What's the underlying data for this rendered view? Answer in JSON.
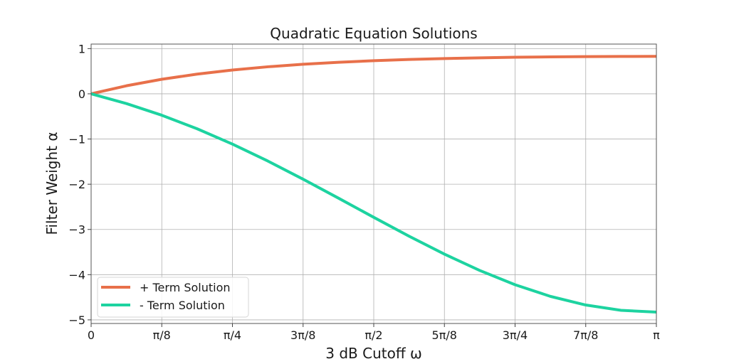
{
  "chart_data": {
    "type": "line",
    "title": "Quadratic Equation Solutions",
    "xlabel": "3 dB Cutoff ω",
    "ylabel": "Filter Weight α",
    "xlim": [
      0,
      3.14159
    ],
    "ylim": [
      -5.08,
      1.1
    ],
    "grid": true,
    "legend_position": "lower left",
    "x_ticks": [
      {
        "value": 0,
        "label": "0"
      },
      {
        "value": 0.392699,
        "label": "π/8"
      },
      {
        "value": 0.785398,
        "label": "π/4"
      },
      {
        "value": 1.178097,
        "label": "3π/8"
      },
      {
        "value": 1.570796,
        "label": "π/2"
      },
      {
        "value": 1.963495,
        "label": "5π/8"
      },
      {
        "value": 2.356194,
        "label": "3π/4"
      },
      {
        "value": 2.748894,
        "label": "7π/8"
      },
      {
        "value": 3.141593,
        "label": "π"
      }
    ],
    "y_ticks": [
      {
        "value": 1,
        "label": "1"
      },
      {
        "value": 0,
        "label": "0"
      },
      {
        "value": -1,
        "label": "−1"
      },
      {
        "value": -2,
        "label": "−2"
      },
      {
        "value": -3,
        "label": "−3"
      },
      {
        "value": -4,
        "label": "−4"
      },
      {
        "value": -5,
        "label": "−5"
      }
    ],
    "x": [
      0,
      0.19635,
      0.3927,
      0.58905,
      0.7854,
      0.98175,
      1.1781,
      1.37445,
      1.5708,
      1.76715,
      1.9635,
      2.15984,
      2.35619,
      2.55254,
      2.74889,
      2.94524,
      3.14159
    ],
    "series": [
      {
        "name": "+ Term Solution",
        "color": "#e8704a",
        "values": [
          0,
          0.1777,
          0.3214,
          0.436,
          0.5266,
          0.5979,
          0.6538,
          0.6977,
          0.7321,
          0.759,
          0.78,
          0.7962,
          0.8085,
          0.8175,
          0.8237,
          0.8272,
          0.8284
        ]
      },
      {
        "name": "- Term Solution",
        "color": "#1dd3a0",
        "values": [
          0,
          -0.2162,
          -0.4737,
          -0.7731,
          -1.1124,
          -1.4867,
          -1.8884,
          -2.3075,
          -2.7321,
          -3.1492,
          -3.5454,
          -3.9074,
          -4.2227,
          -4.4805,
          -4.6714,
          -4.7888,
          -4.8284
        ]
      }
    ]
  }
}
